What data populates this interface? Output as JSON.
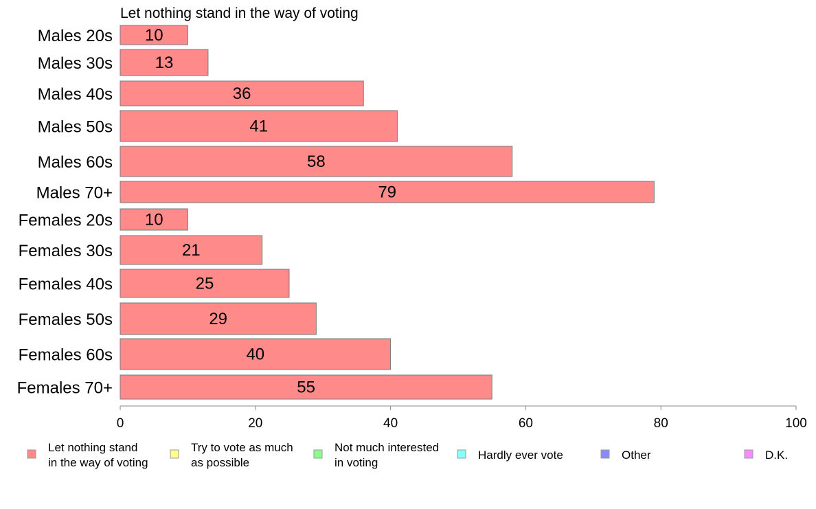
{
  "chart_data": {
    "type": "bar",
    "orientation": "horizontal",
    "panel_title": "Let nothing stand in the way of voting",
    "categories": [
      "Males 20s",
      "Males 30s",
      "Males 40s",
      "Males 50s",
      "Males 60s",
      "Males 70+",
      "Females 20s",
      "Females 30s",
      "Females 40s",
      "Females 50s",
      "Females 60s",
      "Females 70+"
    ],
    "series": [
      {
        "name": "Let nothing stand in the way of voting",
        "values": [
          10,
          13,
          36,
          41,
          58,
          79,
          10,
          21,
          25,
          29,
          40,
          55
        ],
        "data_labels": [
          "10",
          "13",
          "36",
          "41",
          "58",
          "79",
          "10",
          "21",
          "25",
          "29",
          "40",
          "55"
        ]
      }
    ],
    "xlim": [
      0,
      100
    ],
    "x_ticks": [
      "0",
      "20",
      "40",
      "60",
      "80",
      "100"
    ],
    "grid": false,
    "legend_position": "bottom",
    "legend": [
      {
        "lines": [
          "Let nothing stand",
          "in the way of voting"
        ],
        "color": "#ff8a8a"
      },
      {
        "lines": [
          "Try to vote as much",
          "as possible"
        ],
        "color": "#ffff8a"
      },
      {
        "lines": [
          "Not much interested",
          "in voting"
        ],
        "color": "#8aff8a"
      },
      {
        "lines": [
          "Hardly ever vote"
        ],
        "color": "#8affff"
      },
      {
        "lines": [
          "Other"
        ],
        "color": "#8a8aff"
      },
      {
        "lines": [
          "D.K."
        ],
        "color": "#ff8aff"
      }
    ],
    "bar_color": "#ff8a8a",
    "bar_stroke": "#7a7a7a"
  }
}
